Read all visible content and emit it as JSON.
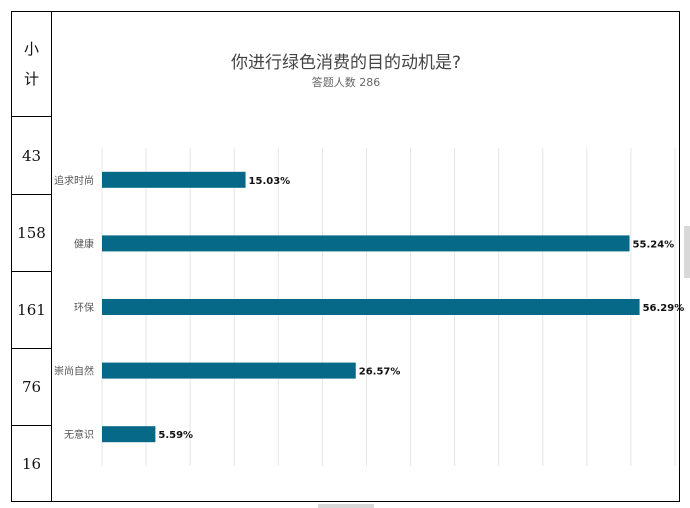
{
  "table": {
    "header": [
      "小",
      "计"
    ],
    "counts": [
      "43",
      "158",
      "161",
      "76",
      "16"
    ]
  },
  "chart_data": {
    "type": "bar",
    "orientation": "horizontal",
    "title": "你进行绿色消费的目的动机是?",
    "subtitle": "答题人数 286",
    "categories": [
      "追求时尚",
      "健康",
      "环保",
      "崇尚自然",
      "无意识"
    ],
    "values": [
      15.03,
      55.24,
      56.29,
      26.57,
      5.59
    ],
    "value_labels": [
      "15.03%",
      "55.24%",
      "56.29%",
      "26.57%",
      "5.59%"
    ],
    "xlim": [
      0,
      60
    ],
    "grid": true,
    "legend": "none",
    "bar_color": "#056987"
  }
}
